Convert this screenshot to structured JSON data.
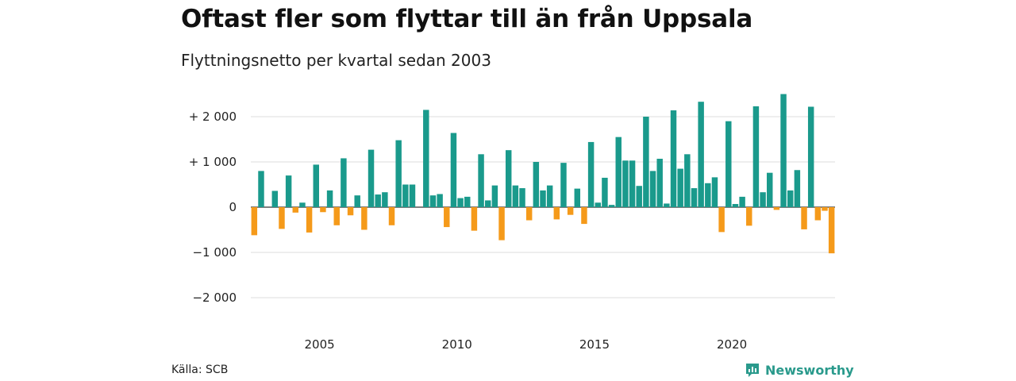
{
  "title": "Oftast fler som flyttar till än från Uppsala",
  "subtitle": "Flyttningsnetto per kvartal sedan 2003",
  "source": "Källa: SCB",
  "brand": "Newsworthy",
  "colors": {
    "positive": "#1a9a8c",
    "negative": "#f59a1a",
    "grid": "#dddddd",
    "zero": "#333333"
  },
  "chart_data": {
    "type": "bar",
    "title": "Oftast fler som flyttar till än från Uppsala",
    "subtitle": "Flyttningsnetto per kvartal sedan 2003",
    "xlabel": "",
    "ylabel": "",
    "ylim": [
      -2300,
      2600
    ],
    "grid": true,
    "y_ticks": [
      {
        "value": 2000,
        "label": "+ 2 000"
      },
      {
        "value": 1000,
        "label": "+ 1 000"
      },
      {
        "value": 0,
        "label": "0"
      },
      {
        "value": -1000,
        "label": "−1 000"
      },
      {
        "value": -2000,
        "label": "−2 000"
      }
    ],
    "x_ticks": [
      {
        "year": 2005,
        "label": "2005"
      },
      {
        "year": 2010,
        "label": "2010"
      },
      {
        "year": 2015,
        "label": "2015"
      },
      {
        "year": 2020,
        "label": "2020"
      }
    ],
    "start_year": 2003,
    "values": [
      -620,
      800,
      0,
      360,
      -480,
      700,
      -120,
      100,
      -560,
      940,
      -110,
      370,
      -400,
      1080,
      -180,
      260,
      -500,
      1270,
      280,
      330,
      -400,
      1480,
      500,
      500,
      0,
      2150,
      260,
      290,
      -440,
      1640,
      200,
      230,
      -520,
      1170,
      150,
      480,
      -730,
      1260,
      480,
      420,
      -290,
      1000,
      370,
      480,
      -270,
      980,
      -170,
      410,
      -370,
      1440,
      100,
      650,
      50,
      1550,
      1030,
      1030,
      470,
      2000,
      800,
      1070,
      80,
      2140,
      850,
      1170,
      420,
      2330,
      530,
      660,
      -550,
      1900,
      70,
      230,
      -410,
      2230,
      330,
      760,
      -60,
      2500,
      370,
      820,
      -490,
      2220,
      -290,
      -80,
      -1020
    ]
  }
}
